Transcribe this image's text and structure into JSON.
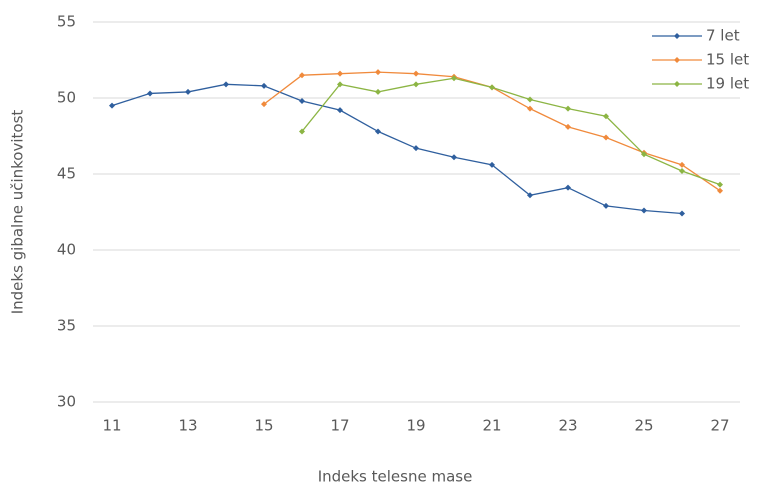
{
  "chart_data": {
    "type": "line",
    "xlabel": "Indeks telesne mase",
    "ylabel": "Indeks gibalne učinkovitost",
    "x": [
      11,
      12,
      13,
      14,
      15,
      16,
      17,
      18,
      19,
      20,
      21,
      22,
      23,
      24,
      25,
      26,
      27
    ],
    "series": [
      {
        "name": "7 let",
        "color": "#2f5f9e",
        "values": [
          49.5,
          50.3,
          50.4,
          50.9,
          50.8,
          49.8,
          49.2,
          47.8,
          46.7,
          46.1,
          45.6,
          43.6,
          44.1,
          42.9,
          42.6,
          42.4,
          null
        ]
      },
      {
        "name": "15 let",
        "color": "#f08a3c",
        "values": [
          null,
          null,
          null,
          null,
          49.6,
          51.5,
          51.6,
          51.7,
          51.6,
          51.4,
          50.7,
          49.3,
          48.1,
          47.4,
          46.4,
          45.6,
          43.9
        ]
      },
      {
        "name": "19 let",
        "color": "#8cb544",
        "values": [
          null,
          null,
          null,
          null,
          null,
          47.8,
          50.9,
          50.4,
          50.9,
          51.3,
          50.7,
          49.9,
          49.3,
          48.8,
          46.3,
          45.2,
          44.3
        ]
      }
    ],
    "xlim": [
      11,
      27
    ],
    "xticks": [
      11,
      13,
      15,
      17,
      19,
      21,
      23,
      25,
      27
    ],
    "ylim": [
      30,
      55
    ],
    "yticks": [
      30,
      35,
      40,
      45,
      50,
      55
    ],
    "grid": true,
    "legend": "top-right"
  }
}
